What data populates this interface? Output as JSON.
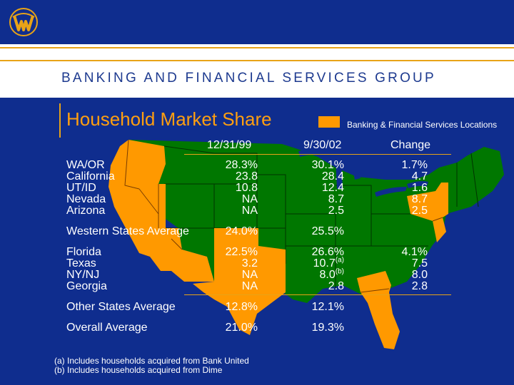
{
  "header": {
    "group_name": "BANKING AND FINANCIAL SERVICES GROUP"
  },
  "colors": {
    "navy": "#0f2d8e",
    "gold": "#e8a317",
    "orange": "#ff9900",
    "green": "#007700"
  },
  "title": "Household Market Share",
  "legend": {
    "label": "Banking & Financial Services Locations",
    "swatch_color": "#ff9900"
  },
  "table": {
    "columns": [
      "12/31/99",
      "9/30/02",
      "Change"
    ],
    "rows": [
      {
        "label": "WA/OR",
        "c1": "28.3%",
        "c2": "30.1%",
        "c3": "1.7%"
      },
      {
        "label": "California",
        "c1": "23.8",
        "c2": "28.4",
        "c3": "4.7"
      },
      {
        "label": "UT/ID",
        "c1": "10.8",
        "c2": "12.4",
        "c3": "1.6"
      },
      {
        "label": "Nevada",
        "c1": "NA",
        "c2": "8.7",
        "c3": "8.7"
      },
      {
        "label": "Arizona",
        "c1": "NA",
        "c2": "2.5",
        "c3": "2.5"
      },
      {
        "label": "Western States Average",
        "c1": "24.0%",
        "c2": "25.5%",
        "c3": ""
      },
      {
        "label": "Florida",
        "c1": "22.5%",
        "c2": "26.6%",
        "c3": "4.1%"
      },
      {
        "label": "Texas",
        "c1": "3.2",
        "c2": "10.7",
        "c2_sup": "(a)",
        "c3": "7.5"
      },
      {
        "label": "NY/NJ",
        "c1": "NA",
        "c2": "8.0",
        "c2_sup": "(b)",
        "c3": "8.0"
      },
      {
        "label": "Georgia",
        "c1": "NA",
        "c2": "2.8",
        "c3": "2.8"
      },
      {
        "label": "Other States Average",
        "c1": "12.8%",
        "c2": "12.1%",
        "c3": ""
      },
      {
        "label": "Overall Average",
        "c1": "21.0%",
        "c2": "19.3%",
        "c3": ""
      }
    ]
  },
  "footnotes": [
    "(a) Includes households acquired from Bank United",
    "(b) Includes households acquired from Dime"
  ]
}
